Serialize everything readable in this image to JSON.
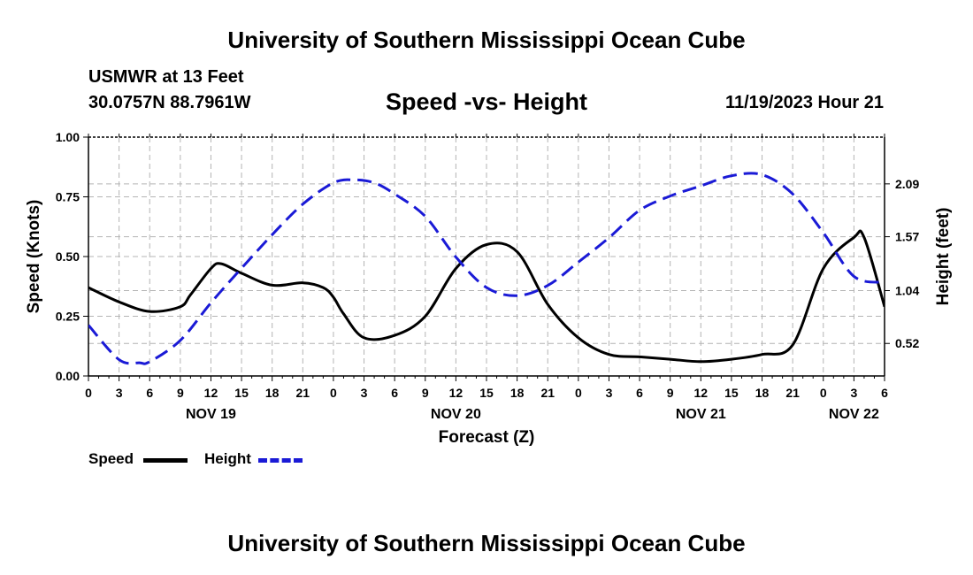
{
  "header": {
    "title": "University of Southern Mississippi Ocean Cube",
    "station_name": "USMWR at 13 Feet",
    "station_coords": "30.0757N  88.7961W",
    "datetime": "11/19/2023 Hour 21"
  },
  "footer": {
    "title": "University of Southern Mississippi Ocean Cube"
  },
  "colors": {
    "speed": "#000000",
    "height": "#1a1ad6",
    "grid": "#b4b4b4"
  },
  "legend": {
    "speed_label": "Speed",
    "height_label": "Height"
  },
  "chart_data": {
    "type": "line",
    "title": "Speed -vs- Height",
    "xlabel": "Forecast (Z)",
    "ylabel_left": "Speed (Knots)",
    "ylabel_right": "Height (feet)",
    "x_range_hours": [
      0,
      78
    ],
    "x_tick_step_hours": 3,
    "x_tick_labels": [
      "0",
      "3",
      "6",
      "9",
      "12",
      "15",
      "18",
      "21",
      "0",
      "3",
      "6",
      "9",
      "12",
      "15",
      "18",
      "21",
      "0",
      "3",
      "6",
      "9",
      "12",
      "15",
      "18",
      "21",
      "0",
      "3",
      "6"
    ],
    "day_labels": [
      {
        "hour": 12,
        "label": "NOV 19"
      },
      {
        "hour": 36,
        "label": "NOV 20"
      },
      {
        "hour": 60,
        "label": "NOV 21"
      },
      {
        "hour": 75,
        "label": "NOV 22"
      }
    ],
    "y_left_range": [
      0,
      1
    ],
    "y_left_ticks": [
      "0.00",
      "0.25",
      "0.50",
      "0.75",
      "1.00"
    ],
    "y_right_range": [
      0.2,
      2.55
    ],
    "y_right_ticks": [
      {
        "value": 0.52,
        "label": "0.52"
      },
      {
        "value": 1.04,
        "label": "1.04"
      },
      {
        "value": 1.57,
        "label": "1.57"
      },
      {
        "value": 2.09,
        "label": "2.09"
      }
    ],
    "grid": true,
    "legend_position": "bottom-left",
    "series": [
      {
        "name": "Speed",
        "axis": "left",
        "style": "solid",
        "x": [
          0,
          3,
          6,
          9,
          10,
          12,
          13,
          15,
          18,
          21,
          23,
          24,
          25,
          27,
          30,
          33,
          36,
          39,
          42,
          45,
          48,
          51,
          54,
          57,
          60,
          63,
          66,
          69,
          72,
          75,
          76,
          78
        ],
        "values": [
          0.37,
          0.31,
          0.27,
          0.29,
          0.34,
          0.45,
          0.47,
          0.43,
          0.38,
          0.39,
          0.37,
          0.33,
          0.26,
          0.16,
          0.17,
          0.25,
          0.45,
          0.55,
          0.52,
          0.3,
          0.16,
          0.09,
          0.08,
          0.07,
          0.06,
          0.07,
          0.09,
          0.13,
          0.45,
          0.58,
          0.58,
          0.29
        ]
      },
      {
        "name": "Height",
        "axis": "right",
        "style": "dashed",
        "x": [
          0,
          3,
          5,
          6,
          9,
          12,
          15,
          18,
          21,
          24,
          26,
          28,
          30,
          33,
          36,
          39,
          42,
          45,
          48,
          51,
          54,
          57,
          60,
          63,
          66,
          69,
          72,
          75,
          78
        ],
        "values": [
          0.7,
          0.36,
          0.33,
          0.34,
          0.55,
          0.92,
          1.26,
          1.59,
          1.89,
          2.1,
          2.13,
          2.1,
          1.99,
          1.77,
          1.37,
          1.07,
          0.99,
          1.09,
          1.32,
          1.56,
          1.83,
          1.97,
          2.07,
          2.17,
          2.18,
          1.99,
          1.61,
          1.18,
          1.12
        ]
      }
    ]
  }
}
